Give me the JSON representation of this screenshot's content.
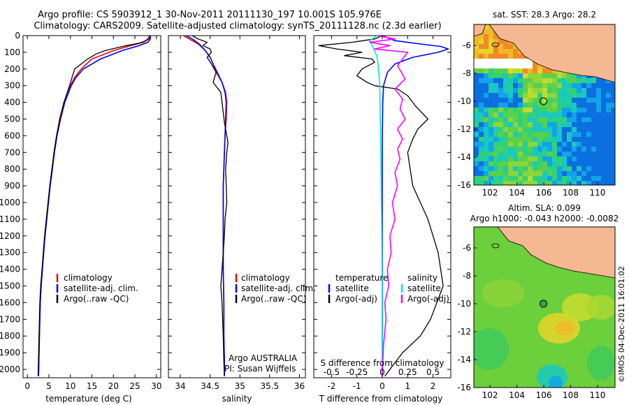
{
  "title_line1": "Argo profile: CS 5903912_1 30-Nov-2011 20111130_197 10.001S 105.976E",
  "title_line2": "Climatology: CARS2009. Satellite-adjusted climatology: synTS_20111128.nc (2.3d earlier)",
  "watermark": "©IMOS 04-Dec-2011 16:01:02",
  "colors": {
    "climatology": "#ff0000",
    "satellite": "#0000ff",
    "argo": "#000000",
    "sal_sat": "#00e5e5",
    "sal_argo": "#ff00ff",
    "land": "#f4b893"
  },
  "chart_data": [
    {
      "id": "temperature",
      "type": "line",
      "xlabel": "temperature (deg C)",
      "xlim": [
        -1,
        31
      ],
      "ylim": [
        0,
        2050
      ],
      "xticks": [
        0,
        5,
        10,
        15,
        20,
        25,
        30
      ],
      "yticks": [
        0,
        100,
        200,
        300,
        400,
        500,
        600,
        700,
        800,
        900,
        1000,
        1100,
        1200,
        1300,
        1400,
        1500,
        1600,
        1700,
        1800,
        1900,
        2000
      ],
      "legend": [
        "climatology",
        "satellite-adj. clim.",
        "Argo(..raw -QC)"
      ],
      "series": [
        {
          "name": "climatology",
          "color": "red",
          "x": [
            28.3,
            28.3,
            27,
            24,
            20,
            15,
            12.5,
            11,
            10,
            8.5,
            7.5,
            6.8,
            6.2,
            5.8,
            5.3,
            4.9,
            4.5,
            4.1,
            3.8,
            3.5,
            3.2,
            3.0,
            2.8,
            2.6
          ],
          "y": [
            0,
            20,
            40,
            60,
            90,
            140,
            200,
            250,
            300,
            400,
            500,
            600,
            700,
            800,
            900,
            1000,
            1100,
            1200,
            1300,
            1400,
            1500,
            1600,
            1800,
            2040
          ]
        },
        {
          "name": "satellite-adj. clim.",
          "color": "blue",
          "x": [
            28.6,
            28.6,
            28,
            26,
            22,
            17,
            13,
            11.3,
            10.2,
            8.7,
            7.7,
            6.9,
            6.3,
            5.8,
            5.3,
            4.9,
            4.5,
            4.1,
            3.8,
            3.5,
            3.2,
            3.0,
            2.8,
            2.6
          ],
          "y": [
            0,
            20,
            40,
            60,
            90,
            140,
            200,
            250,
            300,
            400,
            500,
            600,
            700,
            800,
            900,
            1000,
            1100,
            1200,
            1300,
            1400,
            1500,
            1600,
            1800,
            2040
          ]
        },
        {
          "name": "Argo(..raw -QC)",
          "color": "black",
          "x": [
            28.3,
            28.2,
            27.5,
            26,
            23,
            20.5,
            18,
            16,
            14,
            12.5,
            11,
            10.5,
            9.8,
            8.5,
            7.6,
            6.8,
            6.2,
            5.7,
            5.2,
            4.8,
            4.4,
            4.0,
            3.7,
            3.4,
            3.1,
            2.9,
            2.7,
            2.5
          ],
          "y": [
            0,
            15,
            30,
            45,
            60,
            75,
            90,
            110,
            140,
            170,
            200,
            240,
            300,
            400,
            500,
            600,
            700,
            800,
            900,
            1000,
            1100,
            1200,
            1300,
            1400,
            1500,
            1600,
            1800,
            2040
          ]
        }
      ]
    },
    {
      "id": "salinity",
      "type": "line",
      "xlabel": "salinity",
      "xlim": [
        33.8,
        36.1
      ],
      "ylim": [
        0,
        2050
      ],
      "xticks": [
        34,
        34.5,
        35,
        35.5,
        36
      ],
      "legend": [
        "climatology",
        "satellite-adj. clim.",
        "Argo(..raw -QC)"
      ],
      "annotation": [
        "Argo AUSTRALIA",
        "PI: Susan Wijffels"
      ],
      "series": [
        {
          "name": "climatology",
          "color": "red",
          "x": [
            34.05,
            34.15,
            34.3,
            34.42,
            34.5,
            34.55,
            34.6,
            34.7,
            34.76,
            34.78,
            34.77,
            34.75,
            34.74,
            34.73,
            34.72,
            34.72,
            34.72,
            34.72,
            34.73,
            34.73,
            34.74,
            34.74
          ],
          "y": [
            0,
            20,
            50,
            90,
            130,
            170,
            220,
            280,
            340,
            400,
            500,
            600,
            700,
            800,
            900,
            1000,
            1200,
            1400,
            1600,
            1800,
            1950,
            2040
          ]
        },
        {
          "name": "satellite-adj. clim.",
          "color": "blue",
          "x": [
            34.1,
            34.2,
            34.32,
            34.42,
            34.5,
            34.55,
            34.62,
            34.7,
            34.75,
            34.77,
            34.76,
            34.75,
            34.74,
            34.73,
            34.72,
            34.72,
            34.72,
            34.72,
            34.73,
            34.73,
            34.74,
            34.74
          ],
          "y": [
            0,
            20,
            50,
            90,
            130,
            170,
            220,
            280,
            340,
            400,
            500,
            600,
            700,
            800,
            900,
            1000,
            1200,
            1400,
            1600,
            1800,
            1950,
            2040
          ]
        },
        {
          "name": "Argo(..raw -QC)",
          "color": "black",
          "x": [
            34.2,
            34.3,
            34.45,
            34.38,
            34.5,
            34.52,
            34.45,
            34.52,
            34.6,
            34.55,
            34.68,
            34.7,
            34.72,
            34.74,
            34.77,
            34.8,
            34.78,
            34.76,
            34.77,
            34.78,
            34.75,
            34.74,
            34.72,
            34.7,
            34.68,
            34.7,
            34.72,
            34.73,
            34.74
          ],
          "y": [
            0,
            20,
            40,
            60,
            80,
            100,
            130,
            170,
            220,
            280,
            340,
            400,
            460,
            520,
            580,
            640,
            700,
            800,
            900,
            1000,
            1100,
            1200,
            1300,
            1400,
            1500,
            1600,
            1800,
            1950,
            2040
          ]
        }
      ]
    },
    {
      "id": "differences",
      "type": "line",
      "xlabel": "T difference from climatology",
      "top_label": "S difference from climatology",
      "xlim": [
        -2.7,
        2.7
      ],
      "ylim": [
        0,
        2050
      ],
      "xticks": [
        -2,
        -1,
        0,
        1,
        2
      ],
      "top_ticks": [
        "-0.5",
        "-0.25",
        "0",
        "0.25",
        "0.5"
      ],
      "top_tick_positions": [
        -2,
        -1,
        0,
        1,
        2
      ],
      "legend_left_title": "temperature",
      "legend_right_title": "salinity",
      "legend_left": [
        "satellite",
        "Argo(-adj)"
      ],
      "legend_right": [
        "satellite",
        "Argo(-adj)"
      ],
      "series": [
        {
          "name": "T satellite",
          "color": "blue",
          "x": [
            0,
            0.5,
            1.5,
            2.3,
            2.6,
            2.2,
            1.2,
            0.5,
            0.2,
            0.05,
            0.02,
            0,
            0,
            0,
            0,
            0,
            0
          ],
          "y": [
            0,
            30,
            50,
            65,
            80,
            100,
            130,
            170,
            220,
            300,
            400,
            600,
            800,
            1000,
            1400,
            1800,
            2040
          ]
        },
        {
          "name": "T Argo(-adj)",
          "color": "black",
          "x": [
            0,
            -0.3,
            -1.2,
            -2.5,
            -1.8,
            -0.8,
            -1.5,
            -0.4,
            -0.3,
            -0.8,
            -1.0,
            -0.6,
            -0.3,
            0.6,
            1.0,
            1.3,
            1.8,
            1.4,
            1.2,
            1.0,
            1.1,
            1.2,
            1.5,
            1.8,
            2.2,
            2.4,
            1.9,
            1.5,
            0.8,
            0.3,
            0.1
          ],
          "y": [
            0,
            20,
            40,
            60,
            80,
            100,
            120,
            140,
            160,
            200,
            240,
            280,
            300,
            320,
            360,
            420,
            500,
            560,
            620,
            700,
            800,
            900,
            1000,
            1100,
            1300,
            1500,
            1700,
            1800,
            1900,
            2000,
            2040
          ]
        },
        {
          "name": "S satellite",
          "color": "cyan",
          "x": [
            -0.2,
            -0.5,
            -0.4,
            -0.3,
            -0.2,
            -0.15,
            -0.1,
            -0.08,
            -0.05,
            -0.02,
            0,
            0,
            0
          ],
          "y": [
            0,
            30,
            60,
            90,
            130,
            200,
            300,
            500,
            800,
            1200,
            1600,
            1900,
            2040
          ]
        },
        {
          "name": "S Argo(-adj)",
          "color": "magenta",
          "x": [
            -0.2,
            0.5,
            -0.5,
            0.3,
            -0.3,
            1.0,
            0.6,
            0.9,
            0.5,
            0.8,
            0.7,
            0.9,
            0.6,
            0.8,
            0.6,
            0.7,
            0.5,
            0.6,
            0.4,
            0.5,
            0.3,
            0.35,
            0.2,
            0.25,
            0.1,
            0.15,
            0.05,
            0
          ],
          "y": [
            0,
            20,
            40,
            60,
            80,
            100,
            180,
            260,
            320,
            380,
            440,
            500,
            560,
            620,
            680,
            740,
            820,
            900,
            1000,
            1100,
            1200,
            1300,
            1400,
            1500,
            1600,
            1700,
            1850,
            2040
          ]
        }
      ]
    },
    {
      "id": "map_sst",
      "type": "heatmap",
      "title": "sat. SST: 28.3 Argo: 28.2",
      "xticks": [
        102,
        104,
        106,
        108,
        110
      ],
      "yticks": [
        -6,
        -8,
        -10,
        -12,
        -14,
        -16
      ],
      "xlim": [
        100.8,
        111.3
      ],
      "ylim": [
        -16,
        -4.5
      ],
      "argo_position": [
        105.976,
        -10.001
      ]
    },
    {
      "id": "map_sla",
      "type": "heatmap",
      "title_line1": "Altim. SLA: 0.099",
      "title_line2": "Argo h1000: -0.043 h2000: -0.0082",
      "xticks": [
        102,
        104,
        106,
        108,
        110
      ],
      "yticks": [
        -6,
        -8,
        -10,
        -12,
        -14,
        -16
      ],
      "xlim": [
        100.8,
        111.3
      ],
      "ylim": [
        -16,
        -4.5
      ],
      "argo_position": [
        105.976,
        -10.001
      ]
    }
  ]
}
